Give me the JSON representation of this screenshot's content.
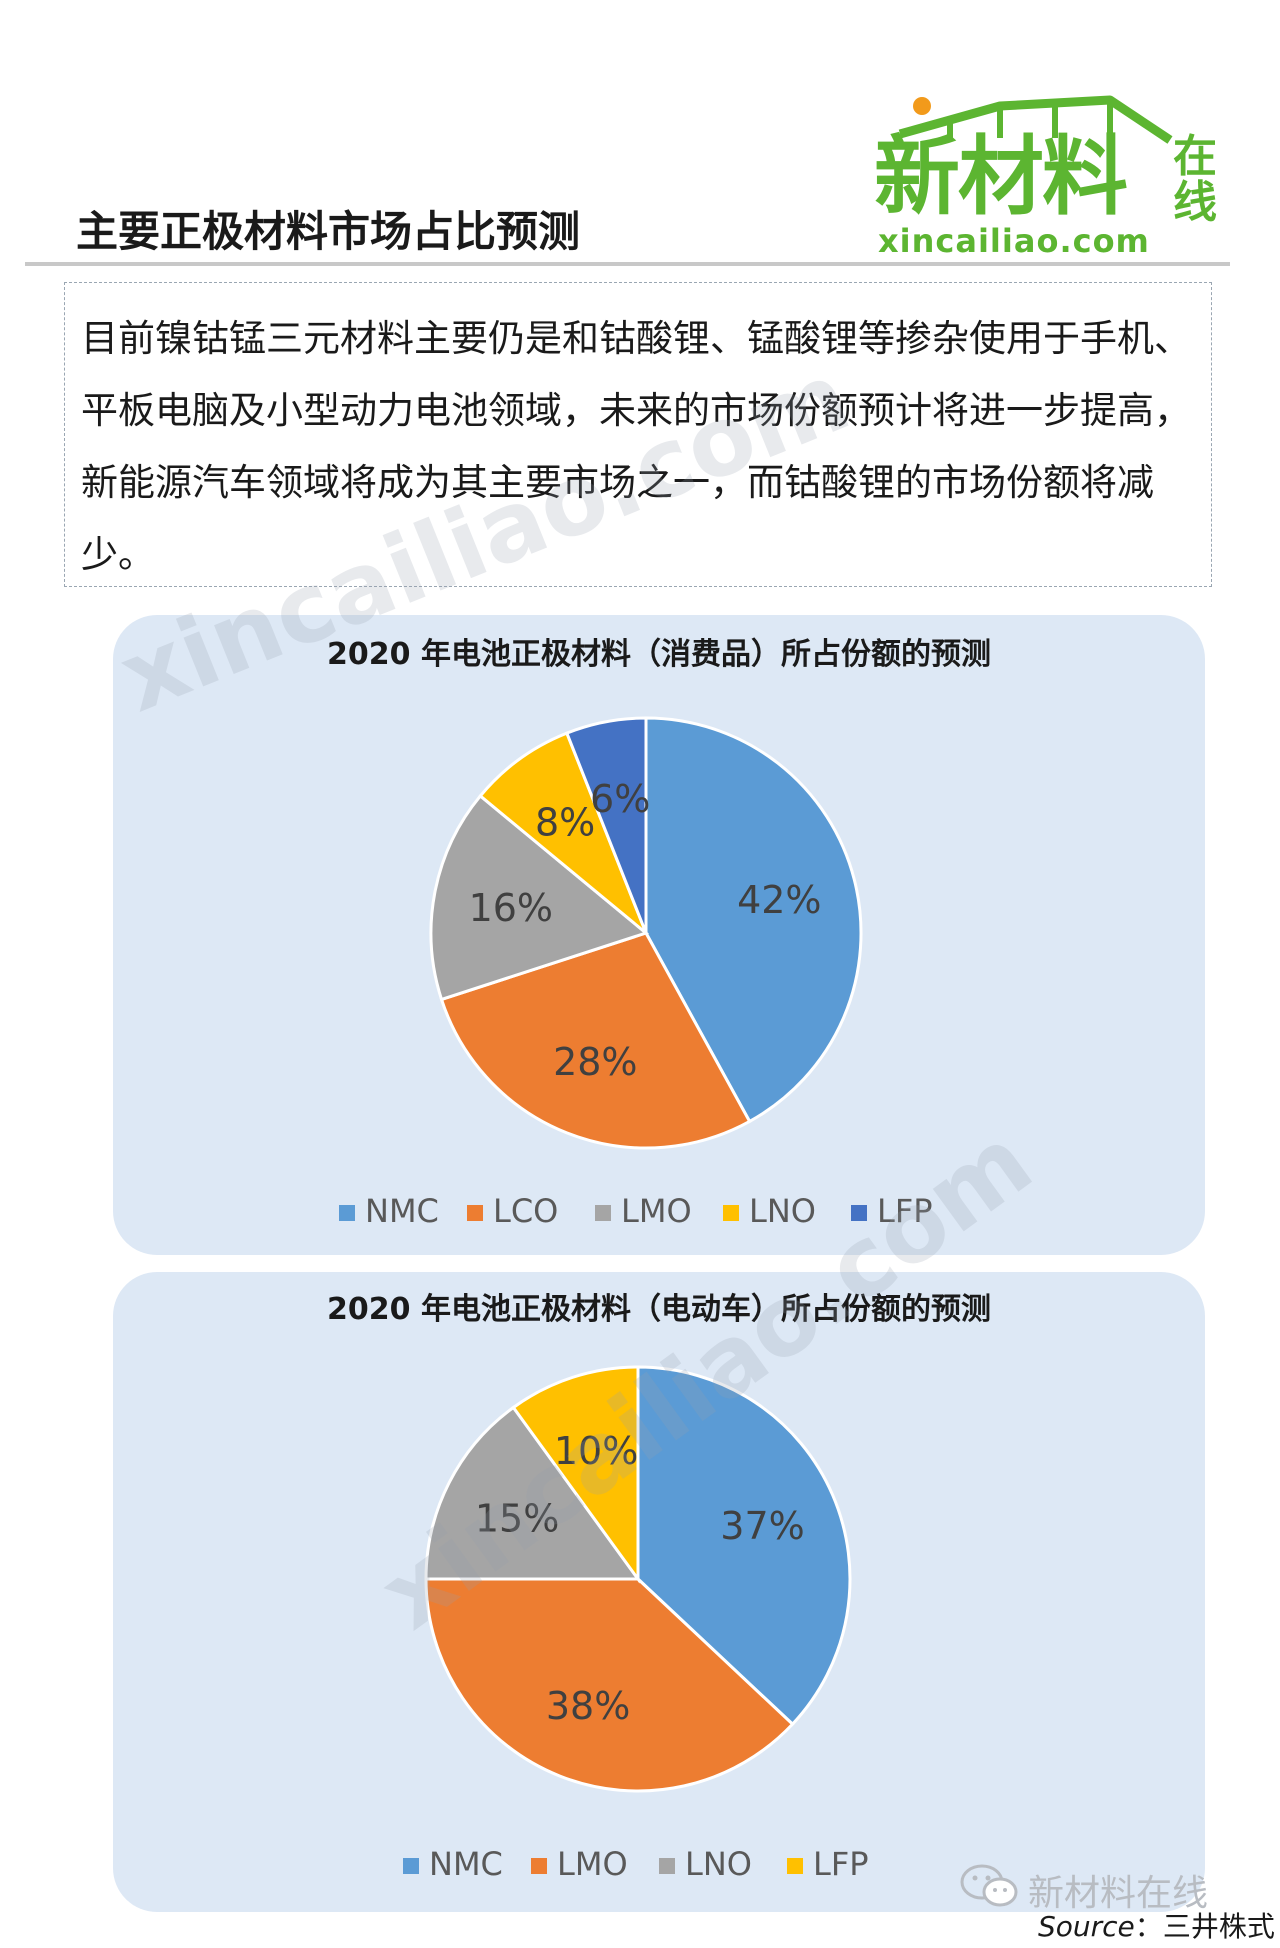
{
  "logo": {
    "main": "新材料",
    "side": "在线",
    "url": "xincailiao.com",
    "brand_color": "#5cb531",
    "dot_color": "#f29a1b"
  },
  "page_title": "主要正极材料市场占比预测",
  "description": "目前镍钴锰三元材料主要仍是和钴酸锂、锰酸锂等掺杂使用于手机、平板电脑及小型动力电池领域，未来的市场份额预计将进一步提高，新能源汽车领域将成为其主要市场之一，而钴酸锂的市场份额将减少。",
  "watermark": "xincailiao.com",
  "chart_data": [
    {
      "type": "pie",
      "title": "2020 年电池正极材料（消费品）所占份额的预测",
      "categories": [
        "NMC",
        "LCO",
        "LMO",
        "LNO",
        "LFP"
      ],
      "values": [
        42,
        28,
        16,
        8,
        6
      ],
      "labels": [
        "42%",
        "28%",
        "16%",
        "8%",
        "6%"
      ],
      "colors": [
        "#5b9bd5",
        "#ed7d31",
        "#a5a5a5",
        "#ffc000",
        "#4472c4"
      ],
      "legend": "bottom"
    },
    {
      "type": "pie",
      "title": "2020 年电池正极材料（电动车）所占份额的预测",
      "categories": [
        "NMC",
        "LMO",
        "LNO",
        "LFP"
      ],
      "values": [
        37,
        38,
        15,
        10
      ],
      "labels": [
        "37%",
        "38%",
        "15%",
        "10%"
      ],
      "colors": [
        "#5b9bd5",
        "#ed7d31",
        "#a5a5a5",
        "#ffc000"
      ],
      "legend": "bottom"
    }
  ],
  "footer": {
    "wechat_label": "新材料在线",
    "source_label": "Source",
    "source_sep": "：",
    "source_value": "三井株式"
  }
}
